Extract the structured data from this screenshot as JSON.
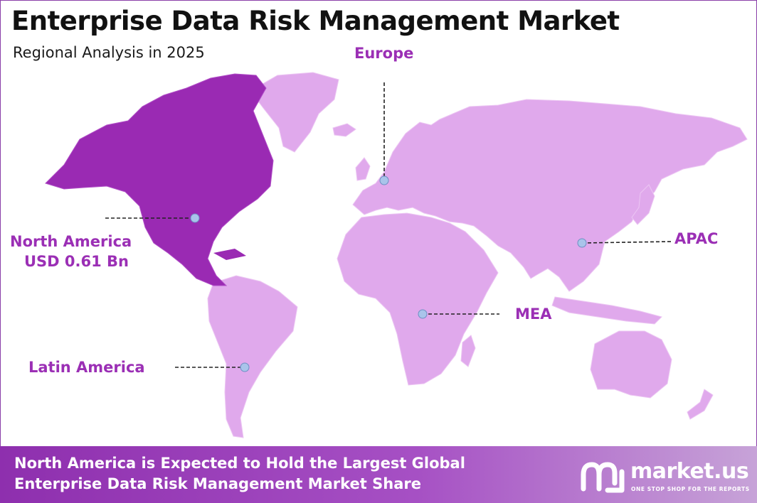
{
  "header": {
    "title": "Enterprise Data Risk Management Market",
    "subtitle": "Regional Analysis in 2025"
  },
  "regions": {
    "north_america": {
      "name": "North America",
      "value": "USD 0.61 Bn",
      "highlighted": true
    },
    "europe": {
      "name": "Europe"
    },
    "apac": {
      "name": "APAC"
    },
    "mea": {
      "name": "MEA"
    },
    "latin_america": {
      "name": "Latin America"
    }
  },
  "footer": {
    "line1": "North America is Expected to Hold the Largest Global",
    "line2": "Enterprise Data Risk Management Market Share"
  },
  "brand": {
    "name": "market.us",
    "tagline": "ONE STOP SHOP FOR THE REPORTS",
    "logo_icon": "market-us-logo-icon"
  },
  "colors": {
    "highlight_region": "#9a2ab3",
    "other_regions": "#e0a9ec",
    "label_text": "#9b2fb5",
    "marker": "#a9c4ea",
    "banner_start": "#8e2fae",
    "banner_end": "#c7a3d8"
  }
}
